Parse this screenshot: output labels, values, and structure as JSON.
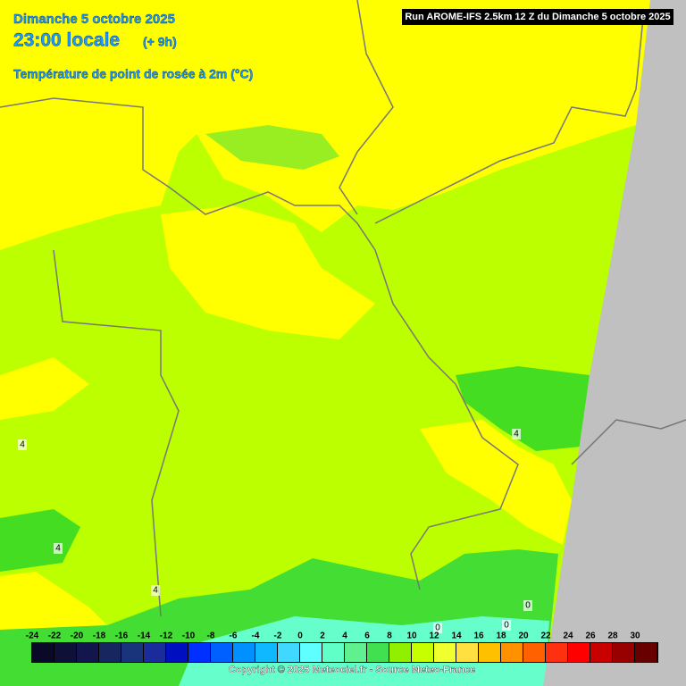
{
  "header": {
    "date": "Dimanche 5 octobre 2025",
    "time": "23:00 locale",
    "offset": "(+ 9h)",
    "field": "Température de point de rosée à 2m (°C)",
    "run": "Run AROME-IFS 2.5km 12 Z du Dimanche 5 octobre 2025"
  },
  "map": {
    "contour_labels": [
      4,
      4,
      4,
      4,
      0,
      0,
      0
    ]
  },
  "legend": {
    "labels": [
      -24,
      -22,
      -20,
      -18,
      -16,
      -14,
      -12,
      -10,
      -8,
      -6,
      -4,
      -2,
      0,
      2,
      4,
      6,
      8,
      10,
      12,
      14,
      16,
      18,
      20,
      22,
      24,
      26,
      28,
      30
    ],
    "colors": [
      "#0a0a28",
      "#0e1038",
      "#12164c",
      "#182660",
      "#1a347c",
      "#1a2c9c",
      "#0010c0",
      "#0030ff",
      "#0060ff",
      "#0090ff",
      "#10b8ff",
      "#40d8ff",
      "#60ffff",
      "#60ffc8",
      "#60f090",
      "#40e050",
      "#90f000",
      "#c8ff00",
      "#f0ff30",
      "#ffe040",
      "#ffc000",
      "#ff9000",
      "#ff6000",
      "#ff3010",
      "#ff0000",
      "#c80000",
      "#980000",
      "#680000"
    ]
  },
  "footer": {
    "copyright": "Copyright © 2025 Meteociel.fr - Source Meteo-France"
  }
}
